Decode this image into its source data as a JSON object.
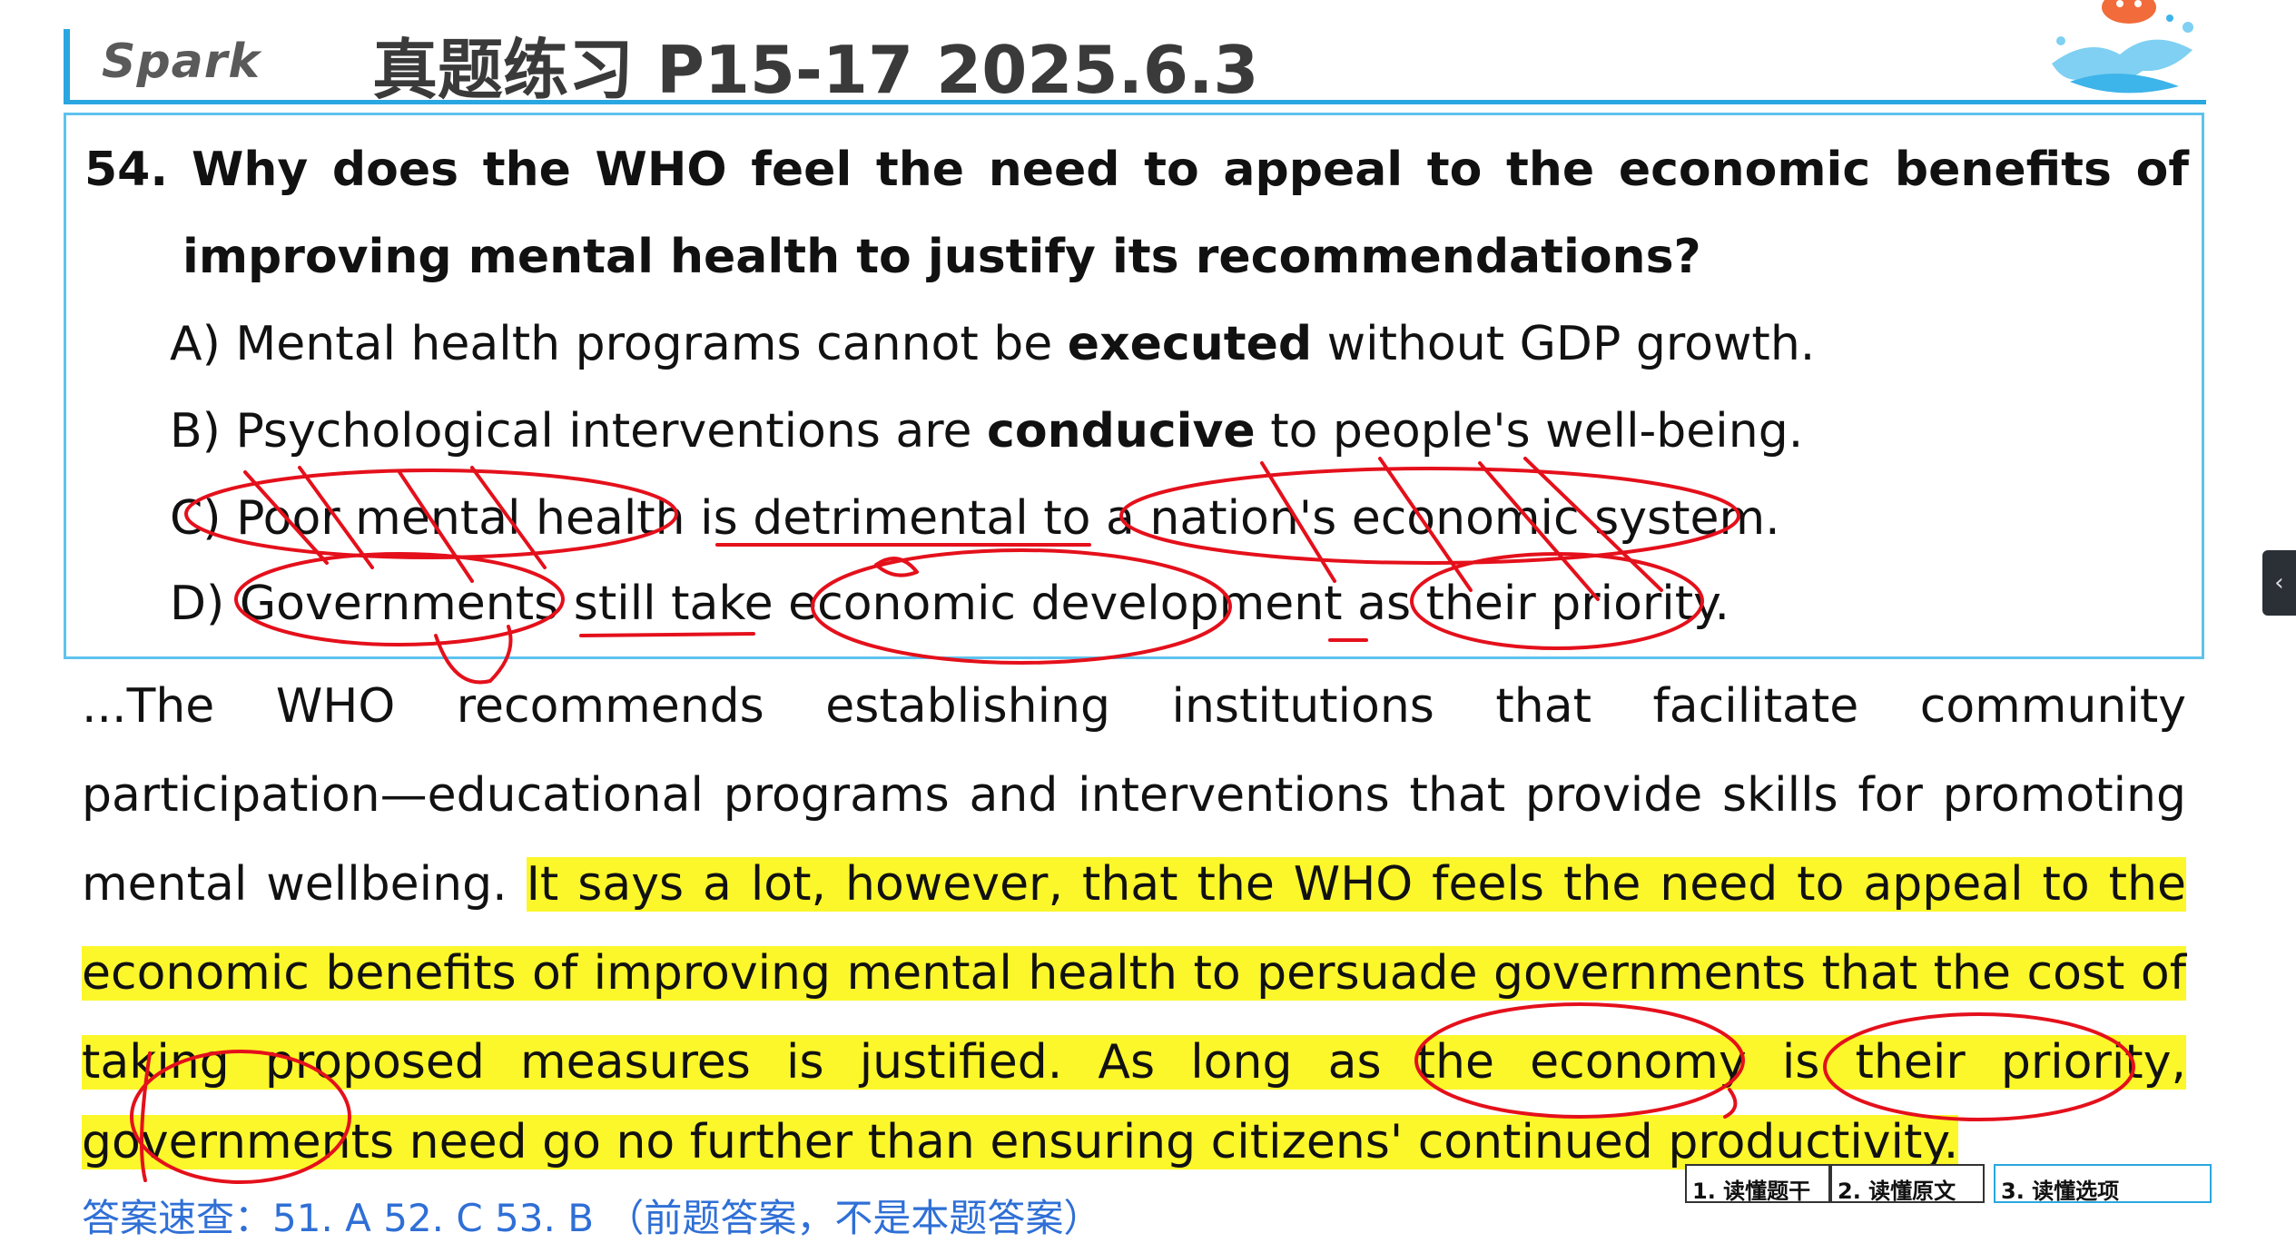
{
  "header": {
    "brand": "Spark",
    "title": "真题练习  P15-17  2025.6.3"
  },
  "question": {
    "number": "54.",
    "line1": "Why does the WHO feel the need to appeal to the economic benefits of",
    "line2": "improving mental health to justify its recommendations?",
    "options": [
      {
        "pre": "A) Mental health programs cannot be ",
        "bold": "executed",
        "post": " without GDP growth."
      },
      {
        "pre": "B) Psychological interventions are ",
        "bold": "conducive",
        "post": " to people's well-being."
      },
      {
        "pre": "C) Poor mental health is detrimental to a nation's economic system.",
        "bold": "",
        "post": ""
      },
      {
        "pre": "D) Governments still take economic development as their priority.",
        "bold": "",
        "post": ""
      }
    ]
  },
  "passage": {
    "line1": "...The WHO recommends establishing institutions that facilitate community",
    "line2": "participation—educational programs and interventions that provide skills for promoting",
    "line3_plain": "mental wellbeing. ",
    "line3_highlight": "It says a lot, however, that the WHO feels the need to appeal to the",
    "line4": "economic benefits of improving mental health to persuade governments that the cost of",
    "line5": "taking proposed measures is justified. As long as the economy is their priority,",
    "line6": "governments need go no further than ensuring citizens' continued productivity."
  },
  "answer_line": "答案速查：51. A    52. C    53. B    （前题答案，不是本题答案）",
  "steps": [
    {
      "label": "1. 读懂题干"
    },
    {
      "label": "2. 读懂原文"
    },
    {
      "label": "3. 读懂选项"
    }
  ],
  "side_tab_icon": "chevron-left-icon",
  "colors": {
    "accent": "#2aa7e0",
    "highlight": "#fcf72a",
    "ink": "#e4101b"
  }
}
